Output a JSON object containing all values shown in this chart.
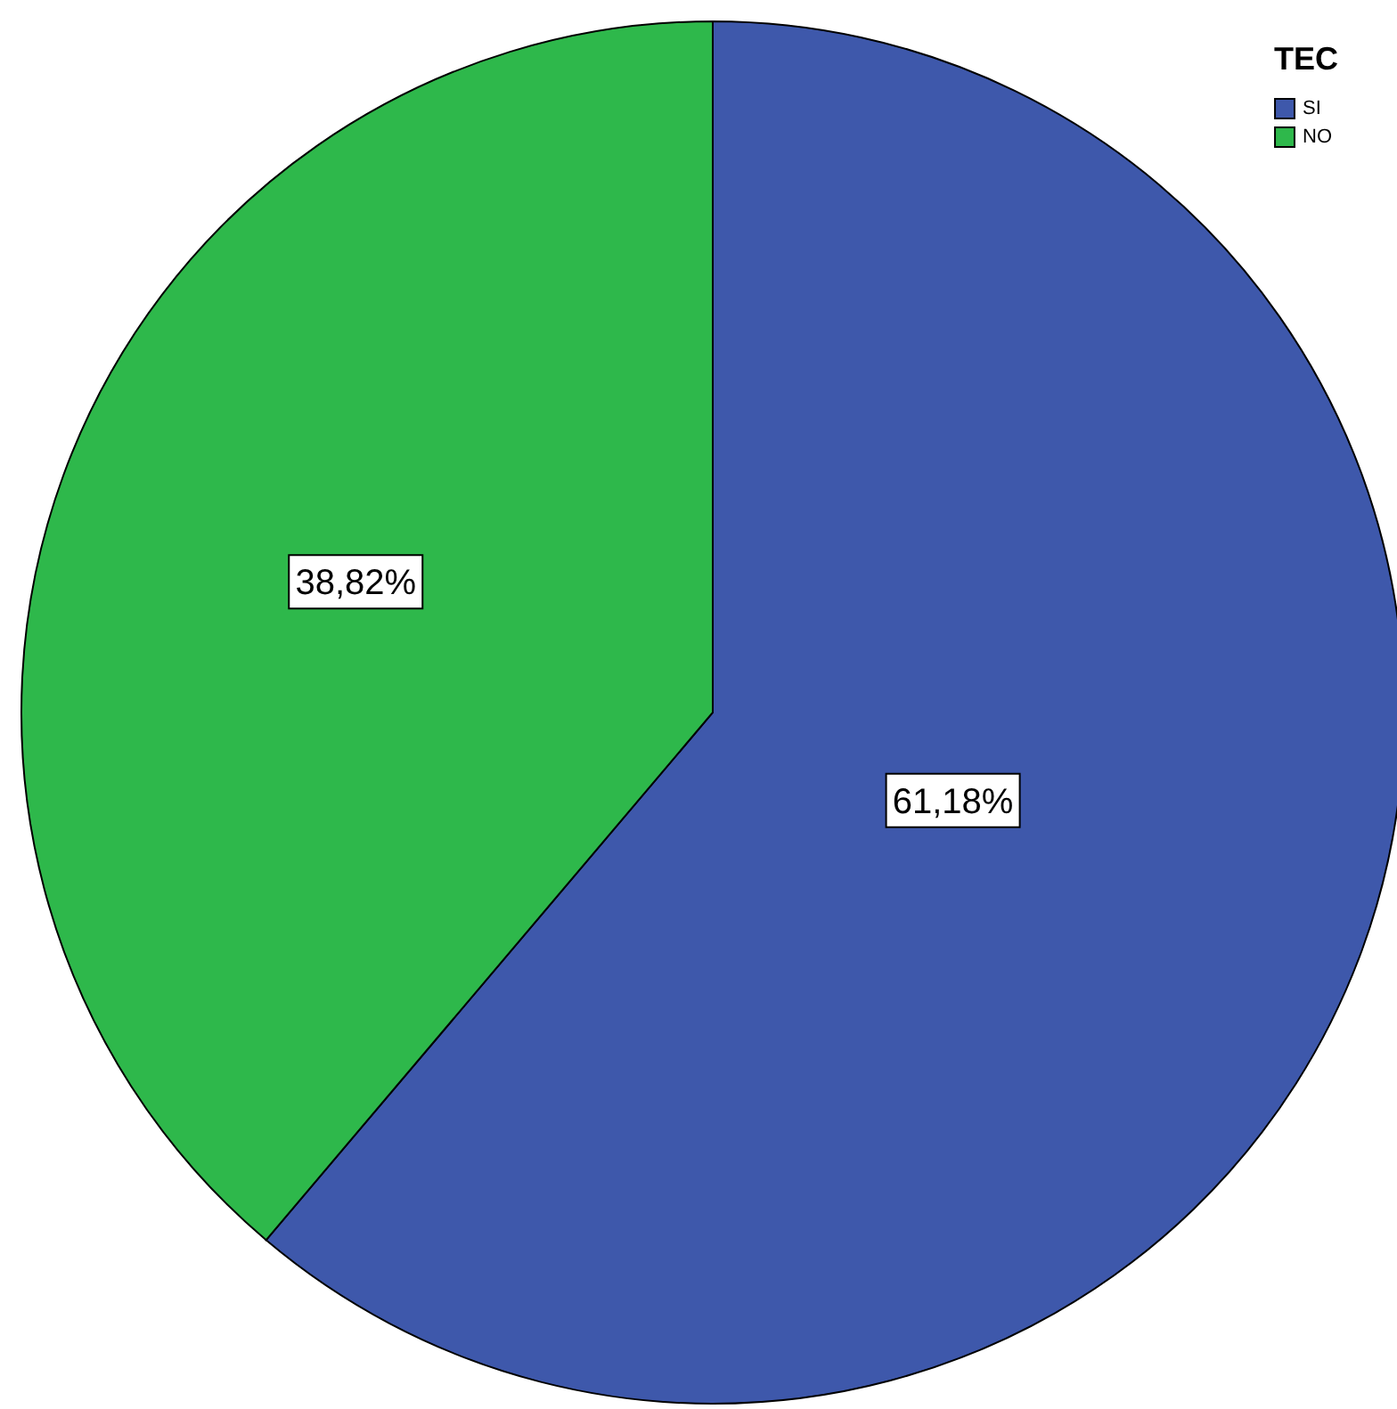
{
  "chart_data": {
    "type": "pie",
    "legend_title": "TEC",
    "categories": [
      "SI",
      "NO"
    ],
    "values": [
      61.18,
      38.82
    ],
    "colors": [
      "#3e58ab",
      "#2eb84b"
    ],
    "value_labels": [
      "61,18%",
      "38,82%"
    ],
    "legend": "top right"
  }
}
